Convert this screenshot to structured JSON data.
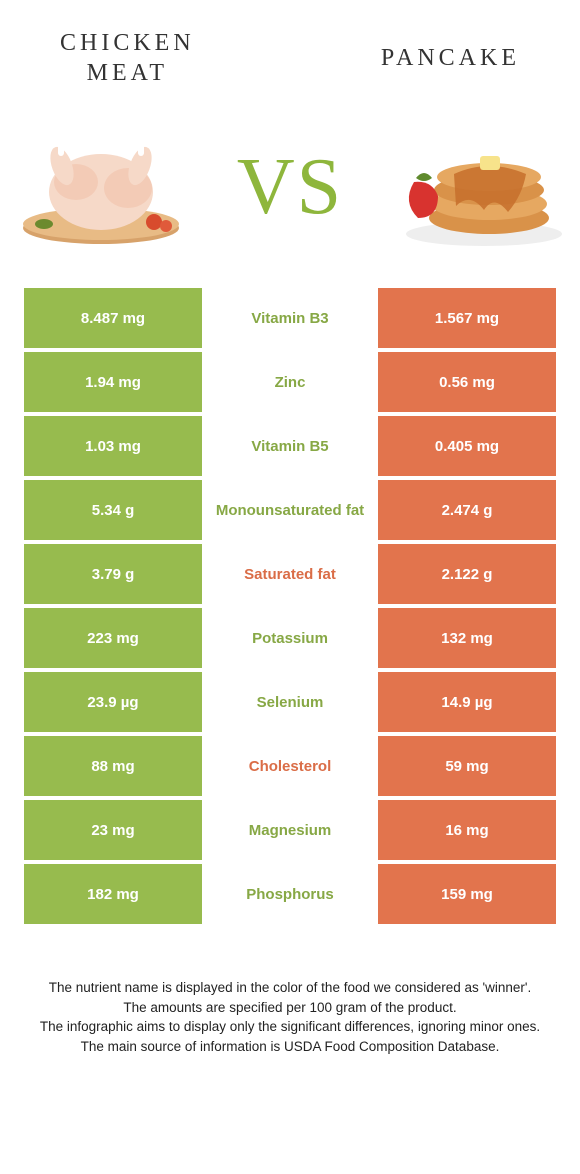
{
  "colors": {
    "green": "#97bb4e",
    "orange": "#e2744d",
    "nutrient_green": "#87a845",
    "nutrient_orange": "#da6d47"
  },
  "header": {
    "left_line1": "CHICKEN",
    "left_line2": "MEAT",
    "right": "PANCAKE"
  },
  "vs": "VS",
  "rows": [
    {
      "nutrient": "Vitamin B3",
      "winner": "left",
      "left": "8.487 mg",
      "right": "1.567 mg"
    },
    {
      "nutrient": "Zinc",
      "winner": "left",
      "left": "1.94 mg",
      "right": "0.56 mg"
    },
    {
      "nutrient": "Vitamin B5",
      "winner": "left",
      "left": "1.03 mg",
      "right": "0.405 mg"
    },
    {
      "nutrient": "Monounsaturated fat",
      "winner": "left",
      "left": "5.34 g",
      "right": "2.474 g"
    },
    {
      "nutrient": "Saturated fat",
      "winner": "right",
      "left": "3.79 g",
      "right": "2.122 g"
    },
    {
      "nutrient": "Potassium",
      "winner": "left",
      "left": "223 mg",
      "right": "132 mg"
    },
    {
      "nutrient": "Selenium",
      "winner": "left",
      "left": "23.9 µg",
      "right": "14.9 µg"
    },
    {
      "nutrient": "Cholesterol",
      "winner": "right",
      "left": "88 mg",
      "right": "59 mg"
    },
    {
      "nutrient": "Magnesium",
      "winner": "left",
      "left": "23 mg",
      "right": "16 mg"
    },
    {
      "nutrient": "Phosphorus",
      "winner": "left",
      "left": "182 mg",
      "right": "159 mg"
    }
  ],
  "footer": {
    "l1": "The nutrient name is displayed in the color of the food we considered as 'winner'.",
    "l2": "The amounts are specified per 100 gram of the product.",
    "l3": "The infographic aims to display only the significant differences, ignoring minor ones.",
    "l4": "The main source of information is USDA Food Composition Database."
  }
}
